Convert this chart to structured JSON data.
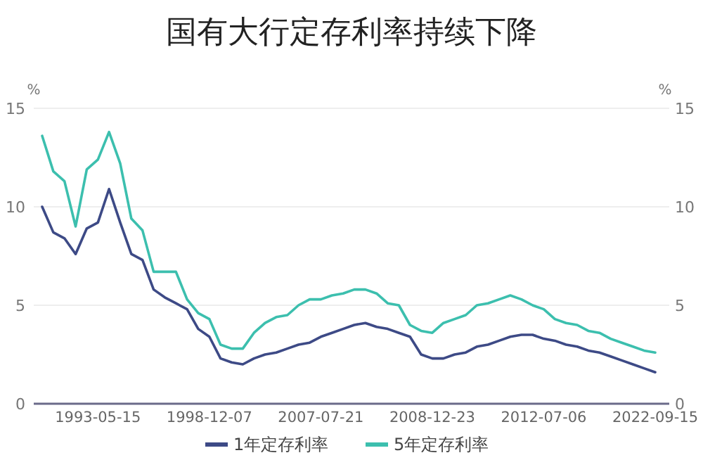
{
  "chart_data": {
    "type": "line",
    "title": "国有大行定存利率持续下降",
    "categories": [
      null,
      null,
      null,
      null,
      null,
      "1993-05-15",
      null,
      null,
      null,
      null,
      null,
      null,
      null,
      null,
      null,
      "1998-12-07",
      null,
      null,
      null,
      null,
      null,
      null,
      null,
      null,
      null,
      "2007-07-21",
      null,
      null,
      null,
      null,
      null,
      null,
      null,
      null,
      null,
      "2008-12-23",
      null,
      null,
      null,
      null,
      null,
      null,
      null,
      null,
      null,
      "2012-07-06",
      null,
      null,
      null,
      null,
      null,
      null,
      null,
      null,
      null,
      "2022-09-15"
    ],
    "series": [
      {
        "name": "1年定存利率",
        "color": "#3d4a86",
        "values": [
          10.0,
          8.7,
          8.4,
          7.6,
          8.9,
          9.2,
          10.9,
          9.2,
          7.6,
          7.3,
          5.8,
          5.4,
          5.1,
          4.8,
          3.8,
          3.4,
          2.3,
          2.1,
          2.0,
          2.3,
          2.5,
          2.6,
          2.8,
          3.0,
          3.1,
          3.4,
          3.6,
          3.8,
          4.0,
          4.1,
          3.9,
          3.8,
          3.6,
          3.4,
          2.5,
          2.3,
          2.3,
          2.5,
          2.6,
          2.9,
          3.0,
          3.2,
          3.4,
          3.5,
          3.5,
          3.3,
          3.2,
          3.0,
          2.9,
          2.7,
          2.6,
          2.4,
          2.2,
          2.0,
          1.8,
          1.6
        ]
      },
      {
        "name": "5年定存利率",
        "color": "#3cbfae",
        "values": [
          13.6,
          11.8,
          11.3,
          9.0,
          11.9,
          12.4,
          13.8,
          12.2,
          9.4,
          8.8,
          6.7,
          6.7,
          6.7,
          5.3,
          4.6,
          4.3,
          3.0,
          2.8,
          2.8,
          3.6,
          4.1,
          4.4,
          4.5,
          5.0,
          5.3,
          5.3,
          5.5,
          5.6,
          5.8,
          5.8,
          5.6,
          5.1,
          5.0,
          4.0,
          3.7,
          3.6,
          4.1,
          4.3,
          4.5,
          5.0,
          5.1,
          5.3,
          5.5,
          5.3,
          5.0,
          4.8,
          4.3,
          4.1,
          4.0,
          3.7,
          3.6,
          3.3,
          3.1,
          2.9,
          2.7,
          2.6
        ]
      }
    ],
    "ylabel": "%",
    "y2label": "%",
    "ylim": [
      0,
      15
    ],
    "yticks": [
      0,
      5,
      10,
      15
    ],
    "y2lim": [
      0,
      15
    ],
    "y2ticks": [
      0,
      5,
      10,
      15
    ],
    "grid": "y",
    "legend": "bottom"
  }
}
